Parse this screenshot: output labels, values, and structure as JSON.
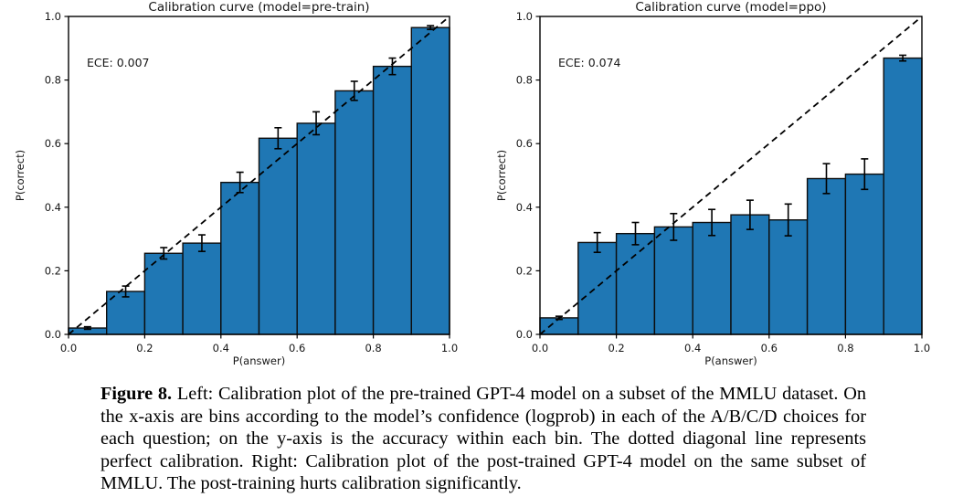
{
  "caption": {
    "figure_label": "Figure 8.",
    "text": "Left: Calibration plot of the pre-trained GPT-4 model on a subset of the MMLU dataset. On the x-axis are bins according to the model’s confidence (logprob) in each of the A/B/C/D choices for each question; on the y-axis is the accuracy within each bin. The dotted diagonal line represents perfect calibration. Right: Calibration plot of the post-trained GPT-4 model on the same subset of MMLU. The post-training hurts calibration significantly."
  },
  "chart_data": [
    {
      "type": "bar",
      "title": "Calibration curve (model=pre-train)",
      "annotation": "ECE: 0.007",
      "xlabel": "P(answer)",
      "ylabel": "P(correct)",
      "xlim": [
        0,
        1
      ],
      "ylim": [
        0,
        1
      ],
      "grid": false,
      "legend_position": "none",
      "x_tick_labels": [
        "0.0",
        "0.2",
        "0.4",
        "0.6",
        "0.8",
        "1.0"
      ],
      "y_tick_labels": [
        "0.0",
        "0.2",
        "0.4",
        "0.6",
        "0.8",
        "1.0"
      ],
      "bin_width": 0.1,
      "bin_centers": [
        0.05,
        0.15,
        0.25,
        0.35,
        0.45,
        0.55,
        0.65,
        0.75,
        0.85,
        0.95
      ],
      "values": [
        0.02,
        0.135,
        0.255,
        0.287,
        0.478,
        0.617,
        0.664,
        0.766,
        0.843,
        0.965
      ],
      "errors": [
        0.004,
        0.017,
        0.018,
        0.026,
        0.032,
        0.033,
        0.036,
        0.03,
        0.026,
        0.006
      ],
      "diagonal_line": "dashed y=x (perfect calibration)",
      "colors": {
        "bar_fill": "#1f77b4",
        "bar_edge": "#0d0d0d",
        "line": "#000000"
      }
    },
    {
      "type": "bar",
      "title": "Calibration curve (model=ppo)",
      "annotation": "ECE: 0.074",
      "xlabel": "P(answer)",
      "ylabel": "P(correct)",
      "xlim": [
        0,
        1
      ],
      "ylim": [
        0,
        1
      ],
      "grid": false,
      "legend_position": "none",
      "x_tick_labels": [
        "0.0",
        "0.2",
        "0.4",
        "0.6",
        "0.8",
        "1.0"
      ],
      "y_tick_labels": [
        "0.0",
        "0.2",
        "0.4",
        "0.6",
        "0.8",
        "1.0"
      ],
      "bin_width": 0.1,
      "bin_centers": [
        0.05,
        0.15,
        0.25,
        0.35,
        0.45,
        0.55,
        0.65,
        0.75,
        0.85,
        0.95
      ],
      "values": [
        0.052,
        0.289,
        0.317,
        0.338,
        0.352,
        0.376,
        0.36,
        0.49,
        0.504,
        0.869
      ],
      "errors": [
        0.005,
        0.031,
        0.035,
        0.042,
        0.041,
        0.046,
        0.05,
        0.047,
        0.048,
        0.009
      ],
      "diagonal_line": "dashed y=x (perfect calibration)",
      "colors": {
        "bar_fill": "#1f77b4",
        "bar_edge": "#0d0d0d",
        "line": "#000000"
      }
    }
  ]
}
